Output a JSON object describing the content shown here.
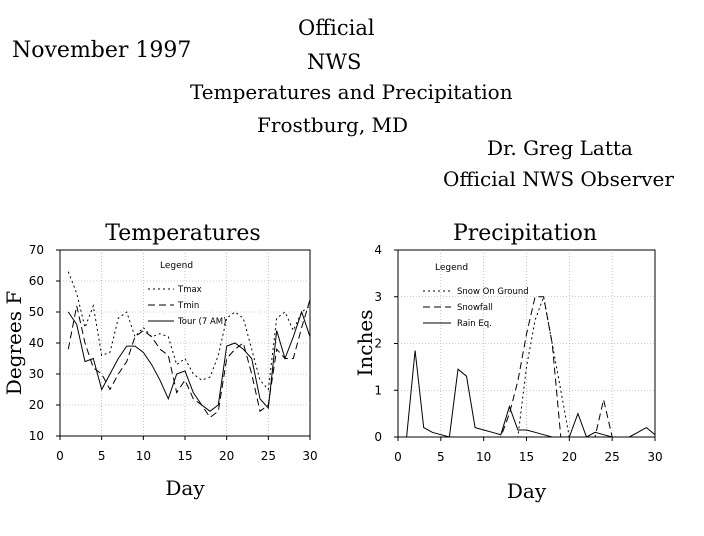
{
  "header": {
    "date": "November 1997",
    "line1": "Official",
    "line2": "NWS",
    "line3": "Temperatures and Precipitation",
    "line4": "Frostburg, MD",
    "observer_name": "Dr. Greg Latta",
    "observer_title": "Official NWS Observer"
  },
  "colors": {
    "line": "#000000",
    "grid": "#999999",
    "background": "#ffffff"
  },
  "chart_data": [
    {
      "type": "line",
      "title": "Temperatures",
      "xlabel": "Day",
      "ylabel": "Degrees F",
      "xlim": [
        0,
        30
      ],
      "ylim": [
        10,
        70
      ],
      "xticks": [
        "0",
        "5",
        "10",
        "15",
        "20",
        "25",
        "30"
      ],
      "yticks": [
        "10",
        "20",
        "30",
        "40",
        "50",
        "60",
        "70"
      ],
      "grid": true,
      "legend_title": "Legend",
      "legend_position": "top-left",
      "x": [
        1,
        2,
        3,
        4,
        5,
        6,
        7,
        8,
        9,
        10,
        11,
        12,
        13,
        14,
        15,
        16,
        17,
        18,
        19,
        20,
        21,
        22,
        23,
        24,
        25,
        26,
        27,
        28,
        29,
        30
      ],
      "series": [
        {
          "name": "Tmax",
          "style": "dotted",
          "values": [
            63,
            56,
            45,
            52,
            36,
            37,
            48,
            50,
            42,
            45,
            42,
            43,
            42,
            33,
            35,
            30,
            28,
            29,
            36,
            48,
            50,
            48,
            38,
            28,
            25,
            48,
            50,
            44,
            50,
            52
          ]
        },
        {
          "name": "Tmin",
          "style": "dashed",
          "values": [
            38,
            52,
            40,
            32,
            30,
            25,
            30,
            34,
            42,
            44,
            42,
            38,
            36,
            24,
            28,
            22,
            20,
            16,
            18,
            35,
            38,
            40,
            30,
            18,
            20,
            38,
            35,
            35,
            45,
            54
          ]
        },
        {
          "name": "Tour (7 AM)",
          "style": "solid",
          "values": [
            50,
            46,
            34,
            35,
            25,
            30,
            35,
            39,
            39,
            37,
            33,
            28,
            22,
            30,
            31,
            24,
            20,
            18,
            20,
            39,
            40,
            38,
            35,
            22,
            19,
            44,
            35,
            42,
            50,
            42
          ]
        }
      ]
    },
    {
      "type": "line",
      "title": "Precipitation",
      "xlabel": "Day",
      "ylabel": "Inches",
      "xlim": [
        0,
        30
      ],
      "ylim": [
        0,
        4
      ],
      "xticks": [
        "0",
        "5",
        "10",
        "15",
        "20",
        "25",
        "30"
      ],
      "yticks": [
        "0",
        "1",
        "2",
        "3",
        "4"
      ],
      "grid": true,
      "legend_title": "Legend",
      "legend_position": "top-right",
      "x": [
        1,
        2,
        3,
        4,
        5,
        6,
        7,
        8,
        9,
        10,
        11,
        12,
        13,
        14,
        15,
        16,
        17,
        18,
        19,
        20,
        21,
        22,
        23,
        24,
        25,
        26,
        27,
        28,
        29,
        30
      ],
      "series": [
        {
          "name": "Snow On Ground",
          "style": "dotted",
          "values": [
            0,
            0,
            0,
            0,
            0,
            0,
            0,
            0,
            0,
            0,
            0,
            0,
            0,
            0,
            1.5,
            2.5,
            3.0,
            2.0,
            1.0,
            0,
            0,
            0,
            0,
            0,
            0,
            0,
            0,
            0,
            0,
            0
          ]
        },
        {
          "name": "Snowfall",
          "style": "dashed",
          "values": [
            0,
            0,
            0,
            0,
            0,
            0,
            0,
            0,
            0,
            0,
            0,
            0,
            0.5,
            1.2,
            2.2,
            3.0,
            3.0,
            2.0,
            0,
            0,
            0,
            0,
            0,
            0.8,
            0,
            0,
            0,
            0,
            0,
            0
          ]
        },
        {
          "name": "Rain Eq.",
          "style": "solid",
          "values": [
            0,
            1.85,
            0.2,
            0.1,
            0.05,
            0,
            1.45,
            1.3,
            0.2,
            0.15,
            0.1,
            0.05,
            0.65,
            0.15,
            0.15,
            0.1,
            0.05,
            0,
            0,
            0,
            0.5,
            0,
            0.1,
            0.05,
            0,
            0,
            0,
            0.1,
            0.2,
            0.05
          ]
        }
      ]
    }
  ]
}
